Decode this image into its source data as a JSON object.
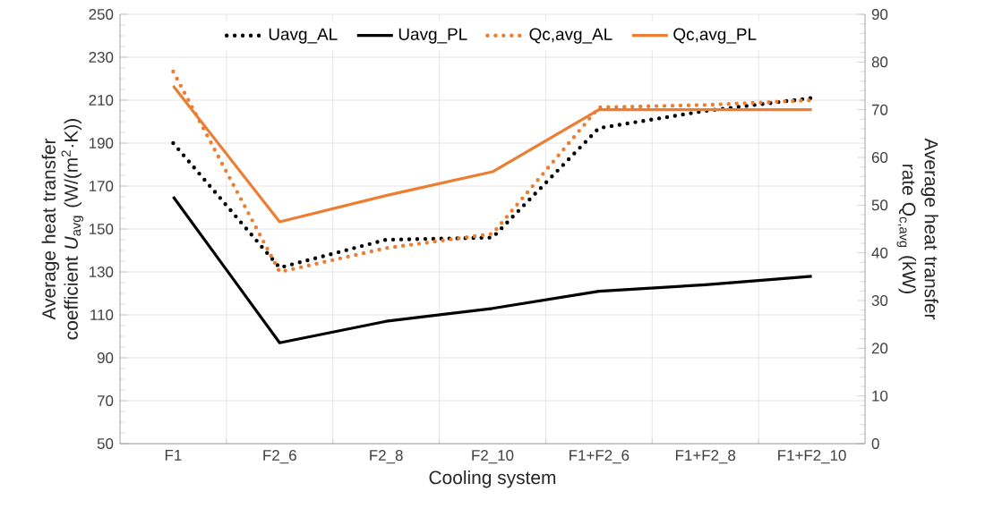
{
  "chart_data": {
    "type": "line",
    "categories": [
      "F1",
      "F2_6",
      "F2_8",
      "F2_10",
      "F1+F2_6",
      "F1+F2_8",
      "F1+F2_10"
    ],
    "xlabel": "Cooling system",
    "ylabel": "Average heat transfer coefficient *U*$_{avg}$ (W/(m$^{2}$·K))",
    "y2label": "Average heat transfer rate Q$_{c,avg}$ (kW)",
    "ylim": [
      50,
      250
    ],
    "yticks": [
      50,
      70,
      90,
      110,
      130,
      150,
      170,
      190,
      210,
      230,
      250
    ],
    "y2lim": [
      0,
      90
    ],
    "y2ticks": [
      0,
      10,
      20,
      30,
      40,
      50,
      60,
      70,
      80,
      90
    ],
    "grid": true,
    "legend": "top",
    "marker": "none",
    "series": [
      {
        "name": "Uavg_AL",
        "color": "#000000",
        "line_style": "dotted",
        "values": [
          190,
          132,
          145,
          146,
          197,
          205,
          211
        ]
      },
      {
        "name": "Uavg_PL",
        "color": "#000000",
        "line_style": "solid",
        "values": [
          165,
          97,
          107,
          113,
          121,
          124,
          128
        ]
      },
      {
        "name": "Qc,avg_AL",
        "color": "#ed7d31",
        "line_style": "dotted",
        "axis": "y2",
        "values": [
          78,
          36,
          41,
          44,
          70.5,
          71,
          72
        ]
      },
      {
        "name": "Qc,avg_PL",
        "color": "#ed7d31",
        "line_style": "solid",
        "axis": "y2",
        "values": [
          75,
          46.5,
          52,
          57,
          70,
          70,
          70
        ]
      }
    ]
  }
}
